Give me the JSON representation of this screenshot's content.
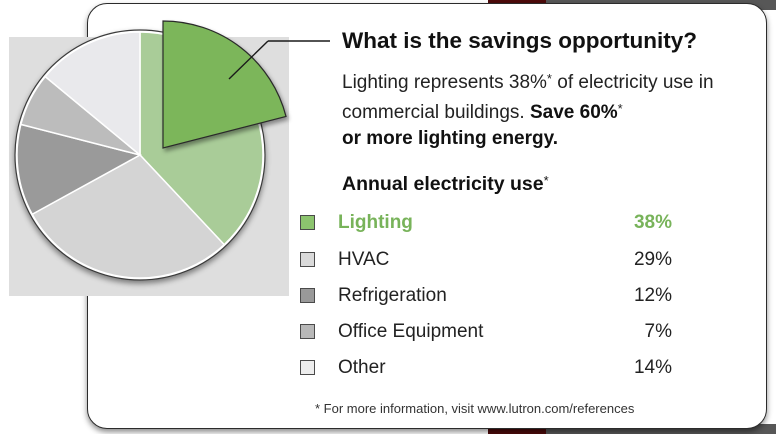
{
  "header": {
    "title": "What is the savings opportunity?"
  },
  "description": {
    "part1": "Lighting represents 38%",
    "star1": "*",
    "part2": " of electricity use in commercial buildings. ",
    "bold1": "Save 60%",
    "star2": "*",
    "bold2": "or more lighting energy."
  },
  "section": {
    "heading": "Annual electricity use",
    "star": "*"
  },
  "legend": [
    {
      "label": "Lighting",
      "value": "38%",
      "color": "#8cc46e",
      "highlight": true
    },
    {
      "label": "HVAC",
      "value": "29%",
      "color": "#dadada",
      "highlight": false
    },
    {
      "label": "Refrigeration",
      "value": "12%",
      "color": "#999999",
      "highlight": false
    },
    {
      "label": "Office Equipment",
      "value": "7%",
      "color": "#b8b8b8",
      "highlight": false
    },
    {
      "label": "Other",
      "value": "14%",
      "color": "#ededed",
      "highlight": false
    }
  ],
  "footnote": "* For more information, visit www.lutron.com/references",
  "chart_data": {
    "type": "pie",
    "categories": [
      "Lighting",
      "HVAC",
      "Refrigeration",
      "Office Equipment",
      "Other"
    ],
    "values": [
      38,
      29,
      12,
      7,
      14
    ],
    "colors": [
      "#a9cc98",
      "#d4d4d4",
      "#9a9a9a",
      "#bcbcbc",
      "#e9e9ec"
    ],
    "exploded_slice": {
      "category": "Lighting",
      "value": 21,
      "color": "#7cb65a"
    },
    "title": ""
  }
}
